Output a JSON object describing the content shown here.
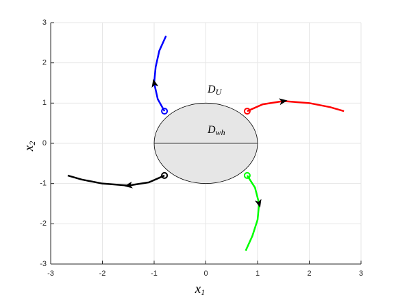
{
  "chart_data": {
    "type": "line",
    "xlabel": {
      "text": "x",
      "sub": "1"
    },
    "ylabel": {
      "text": "x",
      "sub": "2"
    },
    "annotations": [
      {
        "text": "D",
        "sub": "U"
      },
      {
        "text": "D",
        "sub": "wh"
      }
    ],
    "xlim": [
      -3,
      3
    ],
    "ylim": [
      -3,
      3
    ],
    "xticks": [
      -3,
      -2,
      -1,
      0,
      1,
      2,
      3
    ],
    "yticks": [
      -3,
      -2,
      -1,
      0,
      1,
      2,
      3
    ],
    "grid": true,
    "region": {
      "center": [
        0,
        0
      ],
      "radius": 1,
      "color": "#e6e6e6"
    },
    "series": [
      {
        "color": "#0000ff",
        "x": [
          -0.8,
          -0.93,
          -1.0,
          -0.97,
          -0.9,
          -0.77
        ],
        "y": [
          0.8,
          1.1,
          1.5,
          1.9,
          2.3,
          2.67
        ]
      },
      {
        "color": "#ff0000",
        "x": [
          0.8,
          1.1,
          1.5,
          2.0,
          2.4,
          2.67
        ],
        "y": [
          0.8,
          0.97,
          1.05,
          1.0,
          0.9,
          0.8
        ]
      },
      {
        "color": "#00ff00",
        "x": [
          0.8,
          0.95,
          1.03,
          1.0,
          0.9,
          0.77
        ],
        "y": [
          -0.8,
          -1.1,
          -1.5,
          -1.9,
          -2.3,
          -2.67
        ]
      },
      {
        "color": "#000000",
        "x": [
          -0.8,
          -1.1,
          -1.5,
          -2.0,
          -2.4,
          -2.67
        ],
        "y": [
          -0.8,
          -0.97,
          -1.05,
          -1.0,
          -0.9,
          -0.8
        ]
      }
    ]
  }
}
